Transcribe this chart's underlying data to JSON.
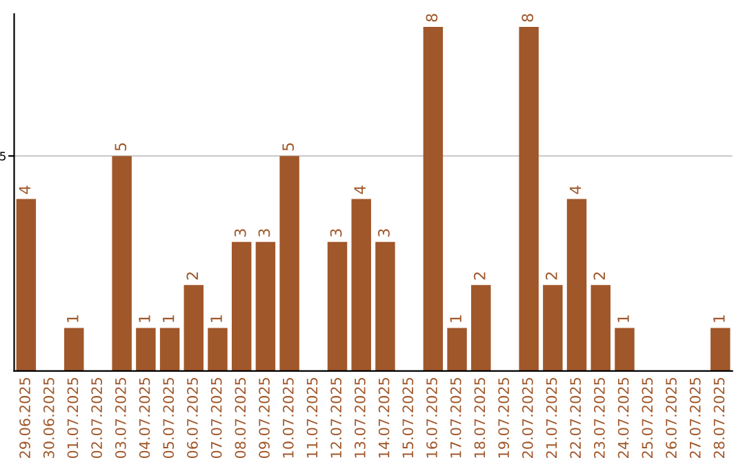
{
  "chart_data": {
    "type": "bar",
    "categories": [
      "29.06.2025",
      "30.06.2025",
      "01.07.2025",
      "02.07.2025",
      "03.07.2025",
      "04.07.2025",
      "05.07.2025",
      "06.07.2025",
      "07.07.2025",
      "08.07.2025",
      "09.07.2025",
      "10.07.2025",
      "11.07.2025",
      "12.07.2025",
      "13.07.2025",
      "14.07.2025",
      "15.07.2025",
      "16.07.2025",
      "17.07.2025",
      "18.07.2025",
      "19.07.2025",
      "20.07.2025",
      "21.07.2025",
      "22.07.2025",
      "23.07.2025",
      "24.07.2025",
      "25.07.2025",
      "26.07.2025",
      "27.07.2025",
      "28.07.2025"
    ],
    "values": [
      4,
      0,
      1,
      0,
      5,
      1,
      1,
      2,
      1,
      3,
      3,
      5,
      0,
      3,
      4,
      3,
      0,
      8,
      1,
      2,
      0,
      8,
      2,
      4,
      2,
      1,
      0,
      0,
      0,
      1
    ],
    "value_labels": [
      "4",
      null,
      "1",
      null,
      "5",
      "1",
      "1",
      "2",
      "1",
      "3",
      "3",
      "5",
      null,
      "3",
      "4",
      "3",
      null,
      "8",
      "1",
      "2",
      null,
      "8",
      "2",
      "4",
      "2",
      "1",
      null,
      null,
      null,
      "1"
    ],
    "color": "#a0572a",
    "ylim": [
      0,
      8.3
    ],
    "yticks": [
      5
    ],
    "grid": "y",
    "legend": false
  }
}
